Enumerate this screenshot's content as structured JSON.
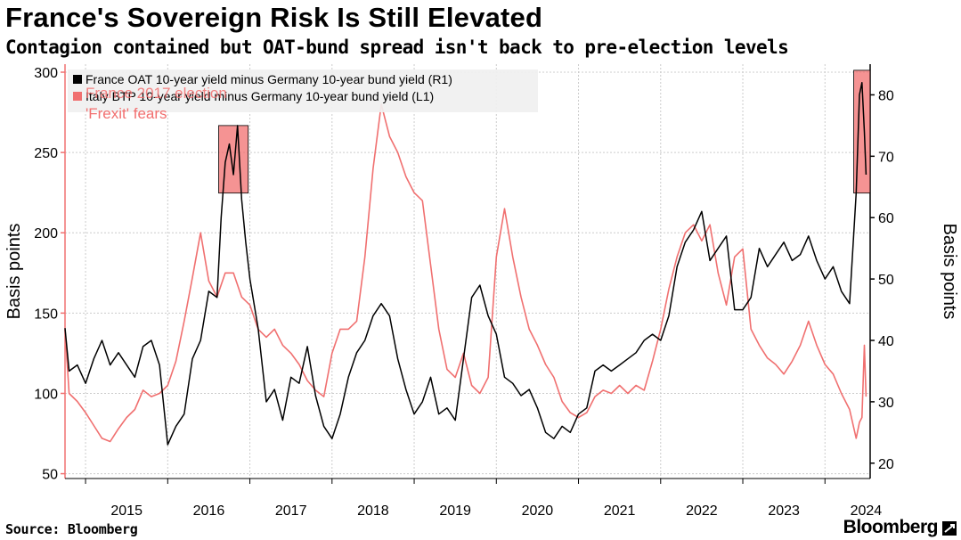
{
  "title": "France's Sovereign Risk Is Still Elevated",
  "subtitle": "Contagion contained but OAT-bund spread isn't back to pre-election levels",
  "source": "Source: Bloomberg",
  "brand": "Bloomberg",
  "chart_data": {
    "type": "line",
    "ylabel_left": "Basis points",
    "ylabel_right": "Basis points",
    "x_ticks": [
      "2015",
      "2016",
      "2017",
      "2018",
      "2019",
      "2020",
      "2021",
      "2022",
      "2023",
      "2024"
    ],
    "x_range": [
      2014.75,
      2024.55
    ],
    "ylim_left": [
      47,
      305
    ],
    "yticks_left": [
      50,
      100,
      150,
      200,
      250,
      300
    ],
    "ylim_right": [
      17.5,
      85
    ],
    "yticks_right": [
      20,
      30,
      40,
      50,
      60,
      70,
      80
    ],
    "grid": true,
    "legend": {
      "position": "top-left",
      "entries": [
        {
          "label": "France OAT 10-year yield minus Germany 10-year bund yield (R1)",
          "color": "#000000"
        },
        {
          "label": "Italy BTP 10-year yield minus Germany 10-year bund yield (L1)",
          "color": "#f07070"
        }
      ]
    },
    "annotations": [
      {
        "text": "France 2017 election",
        "x": 2016.85
      },
      {
        "text": "'Frexit' fears",
        "x": 2016.85
      },
      {
        "text": "",
        "x_start": 2016.62,
        "x_end": 2016.98,
        "y_right_start": 64,
        "y_right_end": 75
      },
      {
        "text": "",
        "x_start": 2024.35,
        "x_end": 2024.6,
        "y_right_start": 64,
        "y_right_end": 84
      }
    ],
    "series": [
      {
        "name": "France OAT 10-year yield minus Germany 10-year bund yield (R1)",
        "axis": "right",
        "color": "#000000",
        "x": [
          2014.75,
          2014.8,
          2014.9,
          2015.0,
          2015.1,
          2015.2,
          2015.3,
          2015.4,
          2015.5,
          2015.6,
          2015.7,
          2015.8,
          2015.9,
          2016.0,
          2016.1,
          2016.2,
          2016.3,
          2016.4,
          2016.5,
          2016.6,
          2016.65,
          2016.7,
          2016.75,
          2016.8,
          2016.85,
          2016.9,
          2016.95,
          2017.0,
          2017.1,
          2017.2,
          2017.3,
          2017.4,
          2017.5,
          2017.6,
          2017.7,
          2017.8,
          2017.9,
          2018.0,
          2018.1,
          2018.2,
          2018.3,
          2018.4,
          2018.5,
          2018.6,
          2018.7,
          2018.8,
          2018.9,
          2019.0,
          2019.1,
          2019.2,
          2019.3,
          2019.4,
          2019.5,
          2019.6,
          2019.7,
          2019.8,
          2019.9,
          2020.0,
          2020.1,
          2020.2,
          2020.3,
          2020.4,
          2020.5,
          2020.6,
          2020.7,
          2020.8,
          2020.9,
          2021.0,
          2021.1,
          2021.2,
          2021.3,
          2021.4,
          2021.5,
          2021.6,
          2021.7,
          2021.8,
          2021.9,
          2022.0,
          2022.1,
          2022.2,
          2022.3,
          2022.4,
          2022.5,
          2022.6,
          2022.7,
          2022.8,
          2022.9,
          2023.0,
          2023.1,
          2023.2,
          2023.3,
          2023.4,
          2023.5,
          2023.6,
          2023.7,
          2023.8,
          2023.9,
          2024.0,
          2024.1,
          2024.2,
          2024.3,
          2024.38,
          2024.42,
          2024.45,
          2024.48,
          2024.5
        ],
        "values": [
          42,
          35,
          36,
          33,
          37,
          40,
          36,
          38,
          36,
          34,
          39,
          40,
          36,
          23,
          26,
          28,
          37,
          40,
          48,
          47,
          60,
          69,
          72,
          67,
          75,
          63,
          56,
          50,
          42,
          30,
          32,
          27,
          34,
          33,
          39,
          31,
          26,
          24,
          28,
          34,
          38,
          40,
          44,
          46,
          44,
          37,
          32,
          28,
          30,
          34,
          28,
          29,
          27,
          37,
          47,
          49,
          44,
          41,
          34,
          33,
          31,
          32,
          29,
          25,
          24,
          26,
          25,
          28,
          29,
          35,
          36,
          35,
          36,
          37,
          38,
          40,
          41,
          40,
          44,
          52,
          56,
          58,
          61,
          53,
          55,
          57,
          45,
          45,
          47,
          55,
          52,
          54,
          56,
          53,
          54,
          57,
          53,
          50,
          52,
          48,
          46,
          64,
          80,
          82,
          74,
          67
        ]
      },
      {
        "name": "Italy BTP 10-year yield minus Germany 10-year bund yield (L1)",
        "axis": "left",
        "color": "#f07070",
        "x": [
          2014.75,
          2014.8,
          2014.9,
          2015.0,
          2015.1,
          2015.2,
          2015.3,
          2015.4,
          2015.5,
          2015.6,
          2015.7,
          2015.8,
          2015.9,
          2016.0,
          2016.1,
          2016.2,
          2016.3,
          2016.4,
          2016.5,
          2016.6,
          2016.7,
          2016.8,
          2016.9,
          2017.0,
          2017.1,
          2017.2,
          2017.3,
          2017.4,
          2017.5,
          2017.6,
          2017.7,
          2017.8,
          2017.9,
          2018.0,
          2018.1,
          2018.2,
          2018.3,
          2018.4,
          2018.5,
          2018.6,
          2018.7,
          2018.8,
          2018.9,
          2019.0,
          2019.1,
          2019.2,
          2019.3,
          2019.4,
          2019.5,
          2019.6,
          2019.7,
          2019.8,
          2019.9,
          2020.0,
          2020.1,
          2020.2,
          2020.3,
          2020.4,
          2020.5,
          2020.6,
          2020.7,
          2020.8,
          2020.9,
          2021.0,
          2021.1,
          2021.2,
          2021.3,
          2021.4,
          2021.5,
          2021.6,
          2021.7,
          2021.8,
          2021.9,
          2022.0,
          2022.1,
          2022.2,
          2022.3,
          2022.4,
          2022.5,
          2022.6,
          2022.7,
          2022.8,
          2022.9,
          2023.0,
          2023.1,
          2023.2,
          2023.3,
          2023.4,
          2023.5,
          2023.6,
          2023.7,
          2023.8,
          2023.9,
          2024.0,
          2024.1,
          2024.2,
          2024.3,
          2024.38,
          2024.42,
          2024.45,
          2024.48,
          2024.5
        ],
        "values": [
          140,
          100,
          95,
          88,
          80,
          72,
          70,
          78,
          85,
          90,
          102,
          98,
          100,
          105,
          120,
          145,
          172,
          200,
          170,
          160,
          175,
          175,
          160,
          155,
          140,
          135,
          140,
          130,
          125,
          118,
          108,
          102,
          98,
          125,
          140,
          140,
          145,
          185,
          240,
          280,
          260,
          250,
          235,
          225,
          220,
          180,
          140,
          115,
          110,
          125,
          105,
          100,
          110,
          185,
          215,
          185,
          160,
          140,
          130,
          118,
          110,
          95,
          88,
          85,
          88,
          98,
          102,
          100,
          105,
          100,
          105,
          102,
          120,
          140,
          165,
          185,
          200,
          205,
          195,
          205,
          175,
          155,
          185,
          190,
          140,
          130,
          122,
          118,
          112,
          120,
          130,
          145,
          130,
          118,
          112,
          100,
          90,
          72,
          82,
          85,
          130,
          98
        ]
      }
    ]
  }
}
